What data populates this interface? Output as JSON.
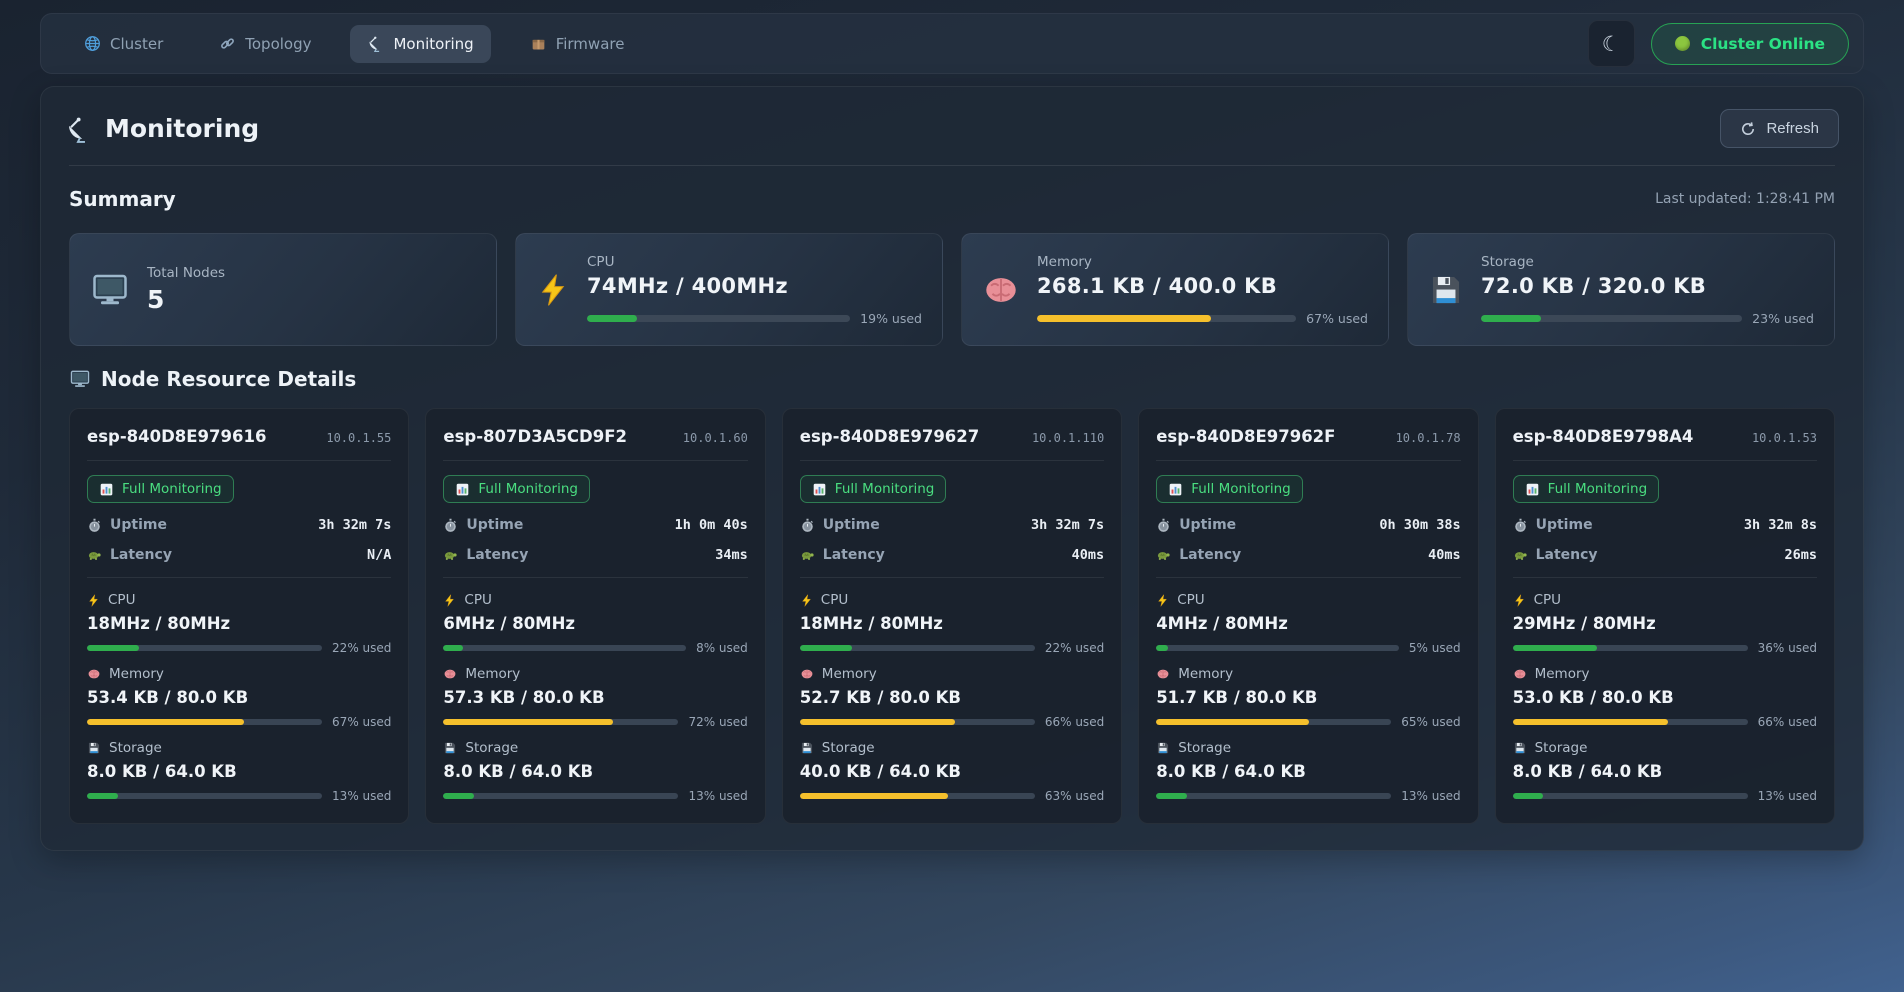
{
  "colors": {
    "bar_green": "#2fae4d",
    "bar_yellow": "#f5c02c",
    "badge_green": "#4ade80",
    "status_green": "#2be284"
  },
  "nav": {
    "tabs": [
      {
        "label": "Cluster",
        "icon": "globe-icon",
        "active": false
      },
      {
        "label": "Topology",
        "icon": "link-icon",
        "active": false
      },
      {
        "label": "Monitoring",
        "icon": "satellite-icon",
        "active": true
      },
      {
        "label": "Firmware",
        "icon": "package-icon",
        "active": false
      }
    ],
    "status_badge": {
      "label": "Cluster Online"
    }
  },
  "header": {
    "title": "Monitoring",
    "refresh_label": "Refresh"
  },
  "summary": {
    "section_title": "Summary",
    "last_updated": "Last updated: 1:28:41 PM",
    "cards": [
      {
        "label": "Total Nodes",
        "value": "5",
        "icon": "monitor-icon"
      },
      {
        "label": "CPU",
        "value": "74MHz / 400MHz",
        "icon": "bolt-icon",
        "percent": 19,
        "percent_label": "19% used",
        "color": "#2fae4d"
      },
      {
        "label": "Memory",
        "value": "268.1 KB / 400.0 KB",
        "icon": "brain-icon",
        "percent": 67,
        "percent_label": "67% used",
        "color": "#f5c02c"
      },
      {
        "label": "Storage",
        "value": "72.0 KB / 320.0 KB",
        "icon": "floppy-icon",
        "percent": 23,
        "percent_label": "23% used",
        "color": "#2fae4d"
      }
    ]
  },
  "nodes_section": {
    "title": "Node Resource Details"
  },
  "labels": {
    "full_monitoring": "Full Monitoring",
    "uptime": "Uptime",
    "latency": "Latency"
  },
  "nodes": [
    {
      "name": "esp-840D8E979616",
      "ip": "10.0.1.55",
      "uptime": "3h 32m 7s",
      "latency": "N/A",
      "metrics": [
        {
          "label": "CPU",
          "value": "18MHz / 80MHz",
          "percent": 22,
          "percent_label": "22% used",
          "color": "#2fae4d"
        },
        {
          "label": "Memory",
          "value": "53.4 KB / 80.0 KB",
          "percent": 67,
          "percent_label": "67% used",
          "color": "#f5c02c"
        },
        {
          "label": "Storage",
          "value": "8.0 KB / 64.0 KB",
          "percent": 13,
          "percent_label": "13% used",
          "color": "#2fae4d"
        }
      ]
    },
    {
      "name": "esp-807D3A5CD9F2",
      "ip": "10.0.1.60",
      "uptime": "1h 0m 40s",
      "latency": "34ms",
      "metrics": [
        {
          "label": "CPU",
          "value": "6MHz / 80MHz",
          "percent": 8,
          "percent_label": "8% used",
          "color": "#2fae4d"
        },
        {
          "label": "Memory",
          "value": "57.3 KB / 80.0 KB",
          "percent": 72,
          "percent_label": "72% used",
          "color": "#f5c02c"
        },
        {
          "label": "Storage",
          "value": "8.0 KB / 64.0 KB",
          "percent": 13,
          "percent_label": "13% used",
          "color": "#2fae4d"
        }
      ]
    },
    {
      "name": "esp-840D8E979627",
      "ip": "10.0.1.110",
      "uptime": "3h 32m 7s",
      "latency": "40ms",
      "metrics": [
        {
          "label": "CPU",
          "value": "18MHz / 80MHz",
          "percent": 22,
          "percent_label": "22% used",
          "color": "#2fae4d"
        },
        {
          "label": "Memory",
          "value": "52.7 KB / 80.0 KB",
          "percent": 66,
          "percent_label": "66% used",
          "color": "#f5c02c"
        },
        {
          "label": "Storage",
          "value": "40.0 KB / 64.0 KB",
          "percent": 63,
          "percent_label": "63% used",
          "color": "#f5c02c"
        }
      ]
    },
    {
      "name": "esp-840D8E97962F",
      "ip": "10.0.1.78",
      "uptime": "0h 30m 38s",
      "latency": "40ms",
      "metrics": [
        {
          "label": "CPU",
          "value": "4MHz / 80MHz",
          "percent": 5,
          "percent_label": "5% used",
          "color": "#2fae4d"
        },
        {
          "label": "Memory",
          "value": "51.7 KB / 80.0 KB",
          "percent": 65,
          "percent_label": "65% used",
          "color": "#f5c02c"
        },
        {
          "label": "Storage",
          "value": "8.0 KB / 64.0 KB",
          "percent": 13,
          "percent_label": "13% used",
          "color": "#2fae4d"
        }
      ]
    },
    {
      "name": "esp-840D8E9798A4",
      "ip": "10.0.1.53",
      "uptime": "3h 32m 8s",
      "latency": "26ms",
      "metrics": [
        {
          "label": "CPU",
          "value": "29MHz / 80MHz",
          "percent": 36,
          "percent_label": "36% used",
          "color": "#2fae4d"
        },
        {
          "label": "Memory",
          "value": "53.0 KB / 80.0 KB",
          "percent": 66,
          "percent_label": "66% used",
          "color": "#f5c02c"
        },
        {
          "label": "Storage",
          "value": "8.0 KB / 64.0 KB",
          "percent": 13,
          "percent_label": "13% used",
          "color": "#2fae4d"
        }
      ]
    }
  ]
}
